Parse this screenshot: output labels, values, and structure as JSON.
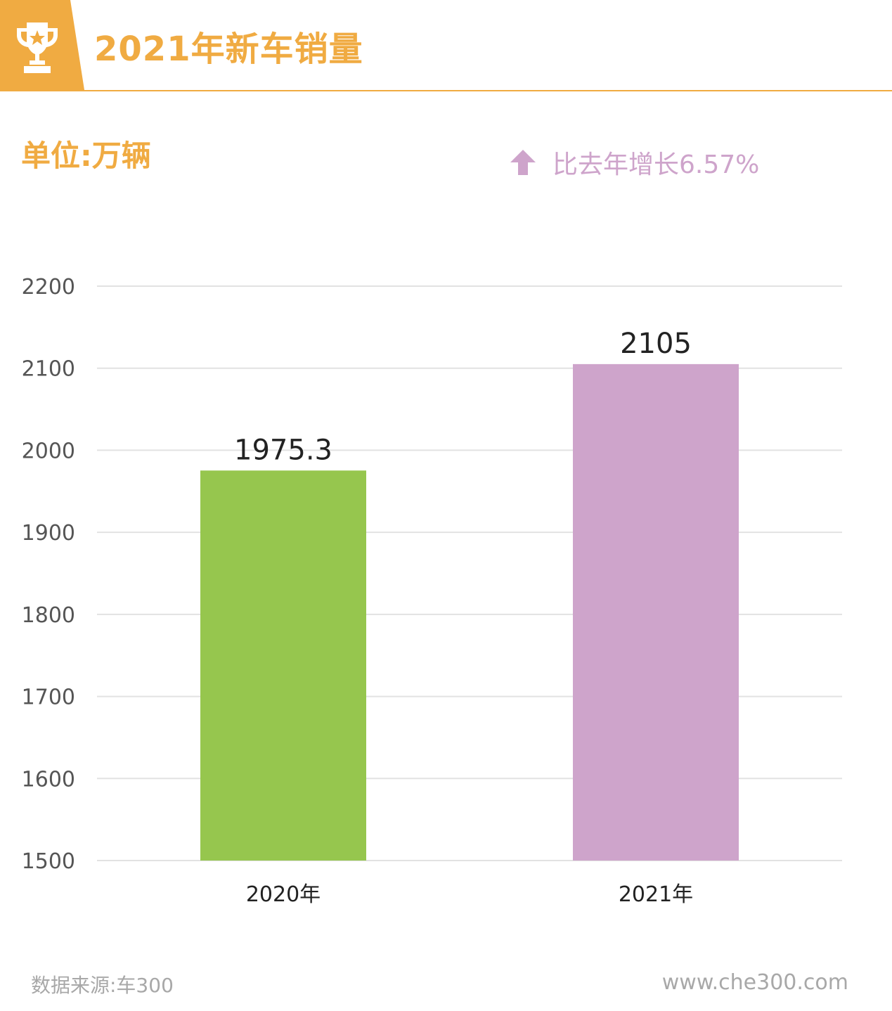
{
  "header": {
    "title": "2021年新车销量"
  },
  "unit_label": "单位:万辆",
  "growth": {
    "text": "比去年增长6.57%",
    "icon": "up-arrow-icon",
    "color": "#cea4cb"
  },
  "chart_data": {
    "type": "bar",
    "categories": [
      "2020年",
      "2021年"
    ],
    "values": [
      1975.3,
      2105
    ],
    "value_labels": [
      "1975.3",
      "2105"
    ],
    "colors": [
      "#96c64e",
      "#cea4cb"
    ],
    "ylim": [
      1500,
      2200
    ],
    "yticks": [
      1500,
      1600,
      1700,
      1800,
      1900,
      2000,
      2100,
      2200
    ],
    "grid": true,
    "legend": "none"
  },
  "footer": {
    "source": "数据来源:车300",
    "site": "www.che300.com"
  },
  "colors": {
    "accent": "#f0ab42",
    "grid": "#e2e2e2",
    "axis_text": "#555555",
    "footer_text": "#a8a8a8"
  }
}
